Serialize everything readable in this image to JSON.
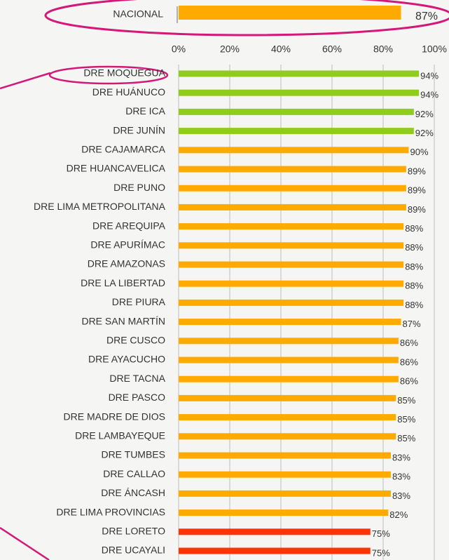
{
  "chart_data": {
    "type": "bar",
    "orientation": "horizontal",
    "national": {
      "name": "NACIONAL",
      "value": 87,
      "value_label": "87%",
      "color": "#ffaa00"
    },
    "categories": [
      "DRE MOQUEGUA",
      "DRE HUÁNUCO",
      "DRE ICA",
      "DRE JUNÍN",
      "DRE CAJAMARCA",
      "DRE HUANCAVELICA",
      "DRE PUNO",
      "DRE LIMA METROPOLITANA",
      "DRE AREQUIPA",
      "DRE APURÍMAC",
      "DRE AMAZONAS",
      "DRE LA LIBERTAD",
      "DRE PIURA",
      "DRE SAN MARTÍN",
      "DRE CUSCO",
      "DRE AYACUCHO",
      "DRE TACNA",
      "DRE PASCO",
      "DRE MADRE DE DIOS",
      "DRE LAMBAYEQUE",
      "DRE TUMBES",
      "DRE CALLAO",
      "DRE ÁNCASH",
      "DRE LIMA PROVINCIAS",
      "DRE LORETO",
      "DRE UCAYALI"
    ],
    "values": [
      94,
      94,
      92,
      92,
      90,
      89,
      89,
      89,
      88,
      88,
      88,
      88,
      88,
      87,
      86,
      86,
      86,
      85,
      85,
      85,
      83,
      83,
      83,
      82,
      75,
      75
    ],
    "value_labels": [
      "94%",
      "94%",
      "92%",
      "92%",
      "90%",
      "89%",
      "89%",
      "89%",
      "88%",
      "88%",
      "88%",
      "88%",
      "88%",
      "87%",
      "86%",
      "86%",
      "86%",
      "85%",
      "85%",
      "85%",
      "83%",
      "83%",
      "83%",
      "82%",
      "75%",
      "75%"
    ],
    "colors": [
      "#8fcc1c",
      "#8fcc1c",
      "#8fcc1c",
      "#8fcc1c",
      "#ffaa00",
      "#ffaa00",
      "#ffaa00",
      "#ffaa00",
      "#ffaa00",
      "#ffaa00",
      "#ffaa00",
      "#ffaa00",
      "#ffaa00",
      "#ffaa00",
      "#ffaa00",
      "#ffaa00",
      "#ffaa00",
      "#ffaa00",
      "#ffaa00",
      "#ffaa00",
      "#ffaa00",
      "#ffaa00",
      "#ffaa00",
      "#ffaa00",
      "#ff3300",
      "#ff3300"
    ],
    "xlim": [
      0,
      100
    ],
    "xticks": [
      {
        "value": 0,
        "label": "0%"
      },
      {
        "value": 20,
        "label": "20%"
      },
      {
        "value": 40,
        "label": "40%"
      },
      {
        "value": 60,
        "label": "60%"
      },
      {
        "value": 80,
        "label": "80%"
      },
      {
        "value": 100,
        "label": "100%"
      }
    ],
    "grid": true
  }
}
